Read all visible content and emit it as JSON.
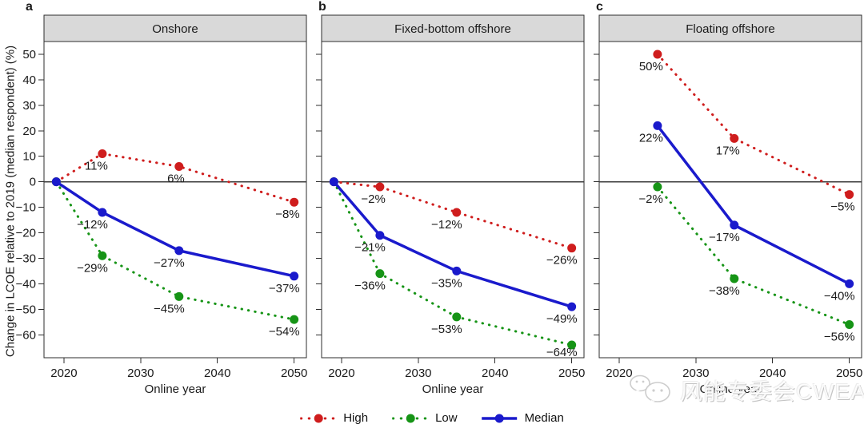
{
  "figure": {
    "ylabel": "Change in LCOE relative to 2019 (median respondent) (%)",
    "xlabel": "Online year"
  },
  "panels": [
    {
      "letter": "a",
      "title": "Onshore"
    },
    {
      "letter": "b",
      "title": "Fixed-bottom offshore"
    },
    {
      "letter": "c",
      "title": "Floating offshore"
    }
  ],
  "legend": [
    {
      "label": "High",
      "color": "#cf1d1d",
      "style": "dotted"
    },
    {
      "label": "Low",
      "color": "#169416",
      "style": "dotted"
    },
    {
      "label": "Median",
      "color": "#1a1acc",
      "style": "solid"
    }
  ],
  "colors": {
    "high": "#cf1d1d",
    "low": "#169416",
    "median": "#1a1acc",
    "header_bg": "#d9d9d9",
    "border": "#2e2e2e",
    "zero_line": "#3c3c3c",
    "text": "#1a1a1a"
  },
  "chart_data": [
    {
      "type": "line",
      "title": "Onshore",
      "xlabel": "Online year",
      "ylabel": "Change in LCOE relative to 2019 (median respondent) (%)",
      "xlim": [
        2017.4,
        2051.6
      ],
      "ylim": [
        -69,
        55
      ],
      "xticks": [
        2020,
        2030,
        2040,
        2050
      ],
      "yticks": [
        50,
        40,
        30,
        20,
        10,
        0,
        -10,
        -20,
        -30,
        -40,
        -50,
        -60
      ],
      "zero_line": 0,
      "grid": false,
      "series": [
        {
          "name": "High",
          "style": "dotted",
          "color": "#cf1d1d",
          "x": [
            2019,
            2025,
            2035,
            2050
          ],
          "y": [
            0,
            11,
            6,
            -8
          ],
          "labels": [
            "",
            "11%",
            "6%",
            "−8%"
          ]
        },
        {
          "name": "Low",
          "style": "dotted",
          "color": "#169416",
          "x": [
            2019,
            2025,
            2035,
            2050
          ],
          "y": [
            0,
            -29,
            -45,
            -54
          ],
          "labels": [
            "",
            "−29%",
            "−45%",
            "−54%"
          ]
        },
        {
          "name": "Median",
          "style": "solid",
          "color": "#1a1acc",
          "x": [
            2019,
            2025,
            2035,
            2050
          ],
          "y": [
            0,
            -12,
            -27,
            -37
          ],
          "labels": [
            "",
            "−12%",
            "−27%",
            "−37%"
          ]
        }
      ]
    },
    {
      "type": "line",
      "title": "Fixed-bottom offshore",
      "xlabel": "Online year",
      "ylabel": "Change in LCOE relative to 2019 (median respondent) (%)",
      "xlim": [
        2017.4,
        2051.6
      ],
      "ylim": [
        -69,
        55
      ],
      "xticks": [
        2020,
        2030,
        2040,
        2050
      ],
      "yticks": [
        50,
        40,
        30,
        20,
        10,
        0,
        -10,
        -20,
        -30,
        -40,
        -50,
        -60
      ],
      "zero_line": 0,
      "grid": false,
      "series": [
        {
          "name": "High",
          "style": "dotted",
          "color": "#cf1d1d",
          "x": [
            2019,
            2025,
            2035,
            2050
          ],
          "y": [
            0,
            -2,
            -12,
            -26
          ],
          "labels": [
            "",
            "−2%",
            "−12%",
            "−26%"
          ]
        },
        {
          "name": "Low",
          "style": "dotted",
          "color": "#169416",
          "x": [
            2019,
            2025,
            2035,
            2050
          ],
          "y": [
            0,
            -36,
            -53,
            -64
          ],
          "labels": [
            "",
            "−36%",
            "−53%",
            "−64%"
          ]
        },
        {
          "name": "Median",
          "style": "solid",
          "color": "#1a1acc",
          "x": [
            2019,
            2025,
            2035,
            2050
          ],
          "y": [
            0,
            -21,
            -35,
            -49
          ],
          "labels": [
            "",
            "−21%",
            "−35%",
            "−49%"
          ]
        }
      ]
    },
    {
      "type": "line",
      "title": "Floating offshore",
      "xlabel": "Online year",
      "ylabel": "Change in LCOE relative to 2019 (median respondent) (%)",
      "xlim": [
        2017.4,
        2051.6
      ],
      "ylim": [
        -69,
        55
      ],
      "xticks": [
        2020,
        2030,
        2040,
        2050
      ],
      "yticks": [
        50,
        40,
        30,
        20,
        10,
        0,
        -10,
        -20,
        -30,
        -40,
        -50,
        -60
      ],
      "zero_line": 0,
      "grid": false,
      "series": [
        {
          "name": "High",
          "style": "dotted",
          "color": "#cf1d1d",
          "x": [
            2025,
            2035,
            2050
          ],
          "y": [
            50,
            17,
            -5
          ],
          "labels": [
            "50%",
            "17%",
            "−5%"
          ]
        },
        {
          "name": "Low",
          "style": "dotted",
          "color": "#169416",
          "x": [
            2025,
            2035,
            2050
          ],
          "y": [
            -2,
            -38,
            -56
          ],
          "labels": [
            "−2%",
            "−38%",
            "−56%"
          ]
        },
        {
          "name": "Median",
          "style": "solid",
          "color": "#1a1acc",
          "x": [
            2025,
            2035,
            2050
          ],
          "y": [
            22,
            -17,
            -40
          ],
          "labels": [
            "22%",
            "−17%",
            "−40%"
          ]
        }
      ]
    }
  ],
  "watermark": {
    "text": "风能专委会CWEA",
    "icon": "wechat-icon"
  }
}
